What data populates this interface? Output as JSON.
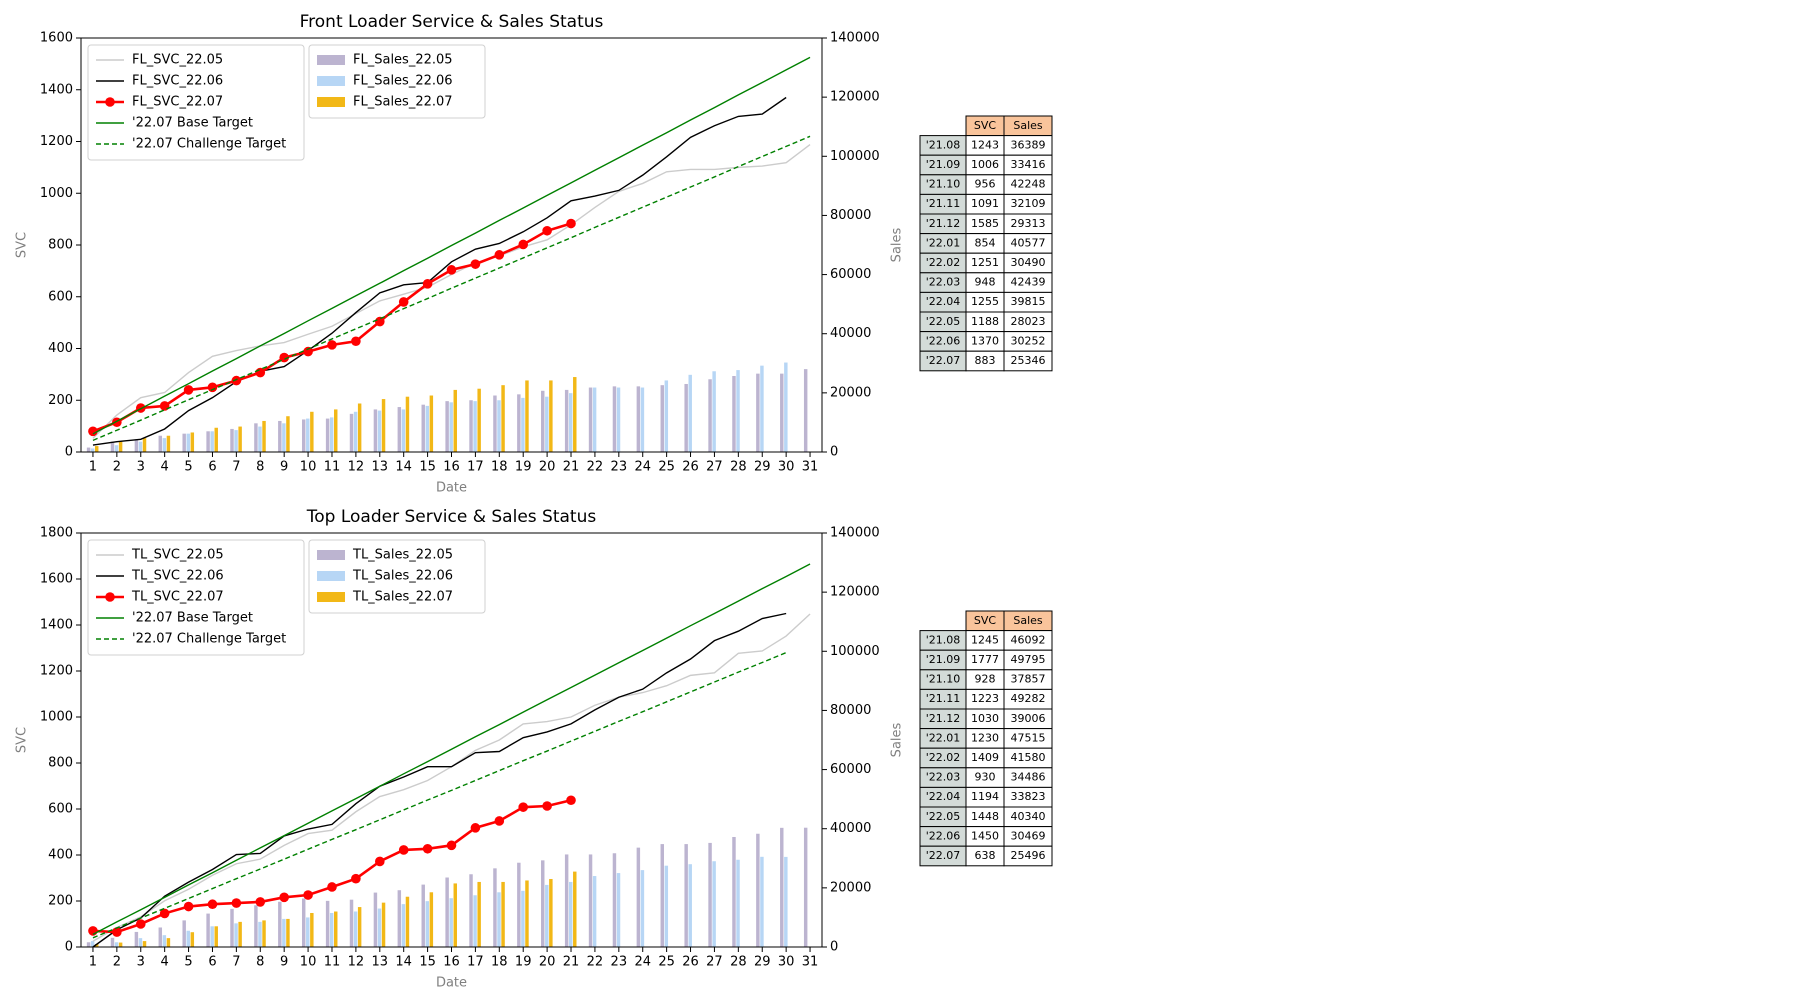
{
  "chart_data": [
    {
      "type": "combo",
      "title": "Front Loader Service & Sales Status",
      "xlabel": "Date",
      "ylabel": "SVC",
      "y2label": "Sales",
      "x": [
        1,
        2,
        3,
        4,
        5,
        6,
        7,
        8,
        9,
        10,
        11,
        12,
        13,
        14,
        15,
        16,
        17,
        18,
        19,
        20,
        21,
        22,
        23,
        24,
        25,
        26,
        27,
        28,
        29,
        30,
        31
      ],
      "xlim": [
        0.5,
        31.5
      ],
      "xticks": [
        1,
        2,
        3,
        4,
        5,
        6,
        7,
        8,
        9,
        10,
        11,
        12,
        13,
        14,
        15,
        16,
        17,
        18,
        19,
        20,
        21,
        22,
        23,
        24,
        25,
        26,
        27,
        28,
        29,
        30,
        31
      ],
      "ylim": [
        0,
        1600
      ],
      "yticks": [
        0,
        200,
        400,
        600,
        800,
        1000,
        1200,
        1400,
        1600
      ],
      "y2lim": [
        0,
        140000
      ],
      "y2ticks": [
        0,
        20000,
        40000,
        60000,
        80000,
        100000,
        120000,
        140000
      ],
      "legend": "upper left",
      "series": [
        {
          "name": "FL_SVC_22.05",
          "type": "line",
          "color": "#cccccc",
          "values": [
            53,
            143,
            210,
            230,
            307,
            370,
            392,
            410,
            423,
            455,
            486,
            535,
            584,
            610,
            637,
            686,
            731,
            758,
            793,
            820,
            878,
            945,
            1007,
            1038,
            1083,
            1092,
            1092,
            1100,
            1105,
            1118,
            1188
          ]
        },
        {
          "name": "FL_SVC_22.06",
          "type": "line",
          "color": "#000000",
          "values": [
            27,
            40,
            49,
            89,
            160,
            210,
            272,
            312,
            330,
            392,
            459,
            539,
            615,
            646,
            655,
            735,
            784,
            806,
            851,
            905,
            971,
            989,
            1011,
            1070,
            1141,
            1216,
            1261,
            1297,
            1306,
            1370,
            null
          ]
        },
        {
          "name": "FL_SVC_22.07",
          "type": "line",
          "color": "#ff0000",
          "marker": "o",
          "values": [
            80,
            115,
            170,
            178,
            240,
            250,
            276,
            307,
            365,
            388,
            414,
            428,
            504,
            580,
            650,
            704,
            726,
            762,
            802,
            855,
            883,
            null,
            null,
            null,
            null,
            null,
            null,
            null,
            null,
            null,
            null
          ]
        },
        {
          "name": "'22.07 Base Target",
          "type": "line",
          "color": "#008000",
          "values": [
            70,
            119,
            167,
            216,
            264,
            313,
            361,
            410,
            458,
            507,
            555,
            604,
            652,
            701,
            749,
            798,
            846,
            895,
            943,
            992,
            1040,
            1089,
            1137,
            1186,
            1234,
            1283,
            1331,
            1380,
            1428,
            1477,
            1525
          ]
        },
        {
          "name": "'22.07 Challenge Target",
          "type": "line",
          "color": "#008000",
          "dashed": true,
          "values": [
            45,
            84,
            123,
            163,
            202,
            241,
            280,
            319,
            358,
            398,
            437,
            476,
            515,
            554,
            593,
            633,
            672,
            711,
            750,
            789,
            828,
            868,
            907,
            946,
            985,
            1024,
            1063,
            1103,
            1142,
            1181,
            1220
          ]
        },
        {
          "name": "FL_Sales_22.05",
          "type": "bar",
          "axis": "y2",
          "color": "#bcb4d0",
          "values": [
            1500,
            3500,
            4300,
            5500,
            6200,
            7000,
            7800,
            9700,
            10500,
            11000,
            11300,
            12900,
            14400,
            15200,
            16000,
            17200,
            17500,
            19100,
            19500,
            20700,
            21000,
            21800,
            22200,
            22200,
            22600,
            23000,
            24600,
            25700,
            26500,
            26500,
            28023
          ]
        },
        {
          "name": "FL_Sales_22.06",
          "type": "bar",
          "axis": "y2",
          "color": "#b7d6f5",
          "values": [
            1200,
            2300,
            3500,
            4700,
            6200,
            7000,
            7400,
            8600,
            9700,
            11300,
            11700,
            13600,
            14000,
            14400,
            15600,
            16800,
            17200,
            17500,
            18300,
            18700,
            19900,
            21800,
            21800,
            21800,
            24200,
            26100,
            27300,
            27700,
            29200,
            30252,
            null
          ]
        },
        {
          "name": "FL_Sales_22.07",
          "type": "bar",
          "axis": "y2",
          "color": "#f2b817",
          "values": [
            2000,
            3500,
            4700,
            5500,
            6600,
            8200,
            8600,
            10500,
            12100,
            13600,
            14400,
            16400,
            17900,
            18700,
            19100,
            21000,
            21400,
            22600,
            24200,
            24200,
            25346,
            null,
            null,
            null,
            null,
            null,
            null,
            null,
            null,
            null,
            null
          ]
        }
      ]
    },
    {
      "type": "combo",
      "title": "Top Loader Service & Sales Status",
      "xlabel": "Date",
      "ylabel": "SVC",
      "y2label": "Sales",
      "x": [
        1,
        2,
        3,
        4,
        5,
        6,
        7,
        8,
        9,
        10,
        11,
        12,
        13,
        14,
        15,
        16,
        17,
        18,
        19,
        20,
        21,
        22,
        23,
        24,
        25,
        26,
        27,
        28,
        29,
        30,
        31
      ],
      "xlim": [
        0.5,
        31.5
      ],
      "xticks": [
        1,
        2,
        3,
        4,
        5,
        6,
        7,
        8,
        9,
        10,
        11,
        12,
        13,
        14,
        15,
        16,
        17,
        18,
        19,
        20,
        21,
        22,
        23,
        24,
        25,
        26,
        27,
        28,
        29,
        30,
        31
      ],
      "ylim": [
        0,
        1800
      ],
      "yticks": [
        0,
        200,
        400,
        600,
        800,
        1000,
        1200,
        1400,
        1600,
        1800
      ],
      "y2lim": [
        0,
        140000
      ],
      "y2ticks": [
        0,
        20000,
        40000,
        60000,
        80000,
        100000,
        120000,
        140000
      ],
      "legend": "upper left",
      "series": [
        {
          "name": "TL_SVC_22.05",
          "type": "line",
          "color": "#cccccc",
          "values": [
            25,
            85,
            131,
            201,
            251,
            312,
            362,
            382,
            442,
            493,
            508,
            588,
            654,
            684,
            724,
            784,
            855,
            900,
            970,
            980,
            1000,
            1051,
            1086,
            1106,
            1136,
            1181,
            1192,
            1277,
            1287,
            1352,
            1448
          ]
        },
        {
          "name": "TL_SVC_22.06",
          "type": "line",
          "color": "#000000",
          "values": [
            0,
            75,
            126,
            221,
            282,
            337,
            402,
            407,
            483,
            513,
            533,
            623,
            699,
            739,
            784,
            784,
            845,
            850,
            910,
            935,
            970,
            1031,
            1086,
            1121,
            1192,
            1252,
            1332,
            1373,
            1428,
            1450,
            null
          ]
        },
        {
          "name": "TL_SVC_22.07",
          "type": "line",
          "color": "#ff0000",
          "marker": "o",
          "values": [
            70,
            65,
            100,
            146,
            176,
            186,
            191,
            196,
            216,
            226,
            261,
            297,
            372,
            422,
            427,
            442,
            518,
            548,
            608,
            613,
            638,
            null,
            null,
            null,
            null,
            null,
            null,
            null,
            null,
            null,
            null
          ]
        },
        {
          "name": "'22.07 Base Target",
          "type": "line",
          "color": "#008000",
          "values": [
            55,
            109,
            162,
            216,
            270,
            323,
            377,
            431,
            484,
            538,
            592,
            645,
            699,
            753,
            806,
            860,
            914,
            967,
            1021,
            1075,
            1128,
            1182,
            1236,
            1289,
            1343,
            1397,
            1450,
            1504,
            1558,
            1611,
            1665
          ]
        },
        {
          "name": "'22.07 Challenge Target",
          "type": "line",
          "color": "#008000",
          "dashed": true,
          "values": [
            40,
            83,
            126,
            168,
            211,
            254,
            297,
            339,
            382,
            425,
            468,
            510,
            553,
            596,
            639,
            681,
            724,
            767,
            810,
            852,
            895,
            938,
            981,
            1023,
            1066,
            1109,
            1152,
            1195,
            1237,
            1280,
            null
          ]
        },
        {
          "name": "TL_Sales_22.05",
          "type": "bar",
          "axis": "y2",
          "color": "#bcb4d0",
          "values": [
            1600,
            3100,
            5100,
            6600,
            9000,
            11300,
            12900,
            14100,
            15300,
            16400,
            15600,
            16000,
            18400,
            19200,
            21100,
            23500,
            24600,
            26600,
            28500,
            29300,
            31300,
            31300,
            31700,
            33600,
            34800,
            34800,
            35200,
            37200,
            38300,
            40300,
            40340
          ]
        },
        {
          "name": "TL_Sales_22.06",
          "type": "bar",
          "axis": "y2",
          "color": "#b7d6f5",
          "values": [
            2000,
            1600,
            3000,
            4000,
            5500,
            7000,
            8000,
            8500,
            9500,
            10000,
            11500,
            12000,
            13000,
            14500,
            15500,
            16500,
            17500,
            18500,
            19000,
            21000,
            22000,
            24000,
            25000,
            26000,
            27500,
            28000,
            29000,
            29500,
            30500,
            30469,
            null
          ]
        },
        {
          "name": "TL_Sales_22.07",
          "type": "bar",
          "axis": "y2",
          "color": "#f2b817",
          "values": [
            1000,
            1500,
            2000,
            3000,
            5000,
            7000,
            8500,
            9000,
            9500,
            11500,
            12000,
            13500,
            15000,
            17000,
            18500,
            21500,
            22000,
            22000,
            22500,
            23000,
            25496,
            null,
            null,
            null,
            null,
            null,
            null,
            null,
            null,
            null,
            null
          ]
        }
      ]
    }
  ],
  "tables": [
    {
      "header": [
        "SVC",
        "Sales"
      ],
      "rows": [
        [
          "'21.08",
          1243,
          36389
        ],
        [
          "'21.09",
          1006,
          33416
        ],
        [
          "'21.10",
          956,
          42248
        ],
        [
          "'21.11",
          1091,
          32109
        ],
        [
          "'21.12",
          1585,
          29313
        ],
        [
          "'22.01",
          854,
          40577
        ],
        [
          "'22.02",
          1251,
          30490
        ],
        [
          "'22.03",
          948,
          42439
        ],
        [
          "'22.04",
          1255,
          39815
        ],
        [
          "'22.05",
          1188,
          28023
        ],
        [
          "'22.06",
          1370,
          30252
        ],
        [
          "'22.07",
          883,
          25346
        ]
      ]
    },
    {
      "header": [
        "SVC",
        "Sales"
      ],
      "rows": [
        [
          "'21.08",
          1245,
          46092
        ],
        [
          "'21.09",
          1777,
          49795
        ],
        [
          "'21.10",
          928,
          37857
        ],
        [
          "'21.11",
          1223,
          49282
        ],
        [
          "'21.12",
          1030,
          39006
        ],
        [
          "'22.01",
          1230,
          47515
        ],
        [
          "'22.02",
          1409,
          41580
        ],
        [
          "'22.03",
          930,
          34486
        ],
        [
          "'22.04",
          1194,
          33823
        ],
        [
          "'22.05",
          1448,
          40340
        ],
        [
          "'22.06",
          1450,
          30469
        ],
        [
          "'22.07",
          638,
          25496
        ]
      ]
    }
  ]
}
